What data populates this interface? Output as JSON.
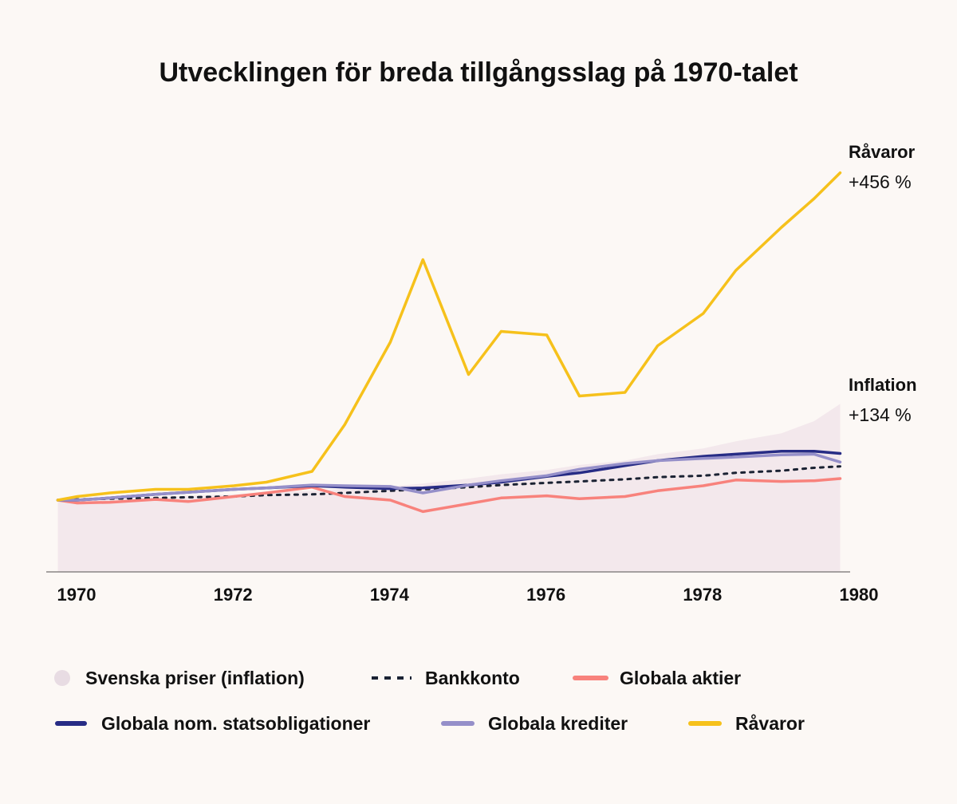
{
  "chart_data": {
    "type": "line",
    "title": "Utvecklingen för breda tillgångsslag på 1970-talet",
    "xlabel": "",
    "ylabel": "",
    "x_ticks": [
      "1970",
      "1972",
      "1974",
      "1976",
      "1978",
      "1980"
    ],
    "grid": false,
    "legend_position": "bottom",
    "x": [
      "1969-10",
      "1970-01",
      "1970-06",
      "1971-01",
      "1971-06",
      "1972-01",
      "1972-06",
      "1973-01",
      "1973-06",
      "1974-01",
      "1974-06",
      "1975-01",
      "1975-06",
      "1976-01",
      "1976-06",
      "1977-01",
      "1977-06",
      "1978-01",
      "1978-06",
      "1979-01",
      "1979-06",
      "1979-10"
    ],
    "series": [
      {
        "name": "Svenska priser (inflation)",
        "style": "area",
        "color": "#f3e8ec",
        "legend_color": "#e8dce3",
        "values": [
          0,
          1,
          2,
          4,
          6,
          8,
          11,
          13,
          16,
          19,
          23,
          30,
          36,
          42,
          49,
          55,
          64,
          72,
          82,
          93,
          110,
          134
        ]
      },
      {
        "name": "Bankkonto",
        "style": "dotted",
        "color": "#1b2233",
        "values": [
          0,
          1,
          2,
          3,
          4,
          5,
          7,
          8,
          10,
          13,
          15,
          18,
          21,
          24,
          26,
          29,
          32,
          34,
          38,
          41,
          45,
          47
        ]
      },
      {
        "name": "Globala aktier",
        "style": "line",
        "color": "#f8827c",
        "values": [
          0,
          -4,
          -3,
          1,
          -2,
          5,
          10,
          18,
          5,
          0,
          -16,
          -5,
          3,
          6,
          2,
          5,
          13,
          20,
          28,
          26,
          27,
          30
        ]
      },
      {
        "name": "Globala nom. statsobligationer",
        "style": "line",
        "color": "#272c85",
        "values": [
          0,
          0,
          3,
          8,
          11,
          15,
          17,
          20,
          18,
          16,
          17,
          21,
          25,
          33,
          38,
          48,
          55,
          61,
          64,
          68,
          68,
          65
        ]
      },
      {
        "name": "Globala krediter",
        "style": "line",
        "color": "#958fc9",
        "values": [
          0,
          0,
          3,
          8,
          11,
          15,
          17,
          21,
          20,
          19,
          10,
          21,
          27,
          34,
          43,
          51,
          55,
          58,
          60,
          63,
          64,
          53
        ]
      },
      {
        "name": "Råvaror",
        "style": "line",
        "color": "#f6c11b",
        "values": [
          0,
          5,
          10,
          15,
          15,
          20,
          25,
          40,
          105,
          220,
          335,
          175,
          235,
          230,
          145,
          150,
          215,
          260,
          320,
          380,
          420,
          456
        ]
      }
    ],
    "annotations": [
      {
        "label": "Råvaror",
        "value": "+456 %"
      },
      {
        "label": "Inflation",
        "value": "+134 %"
      }
    ]
  }
}
